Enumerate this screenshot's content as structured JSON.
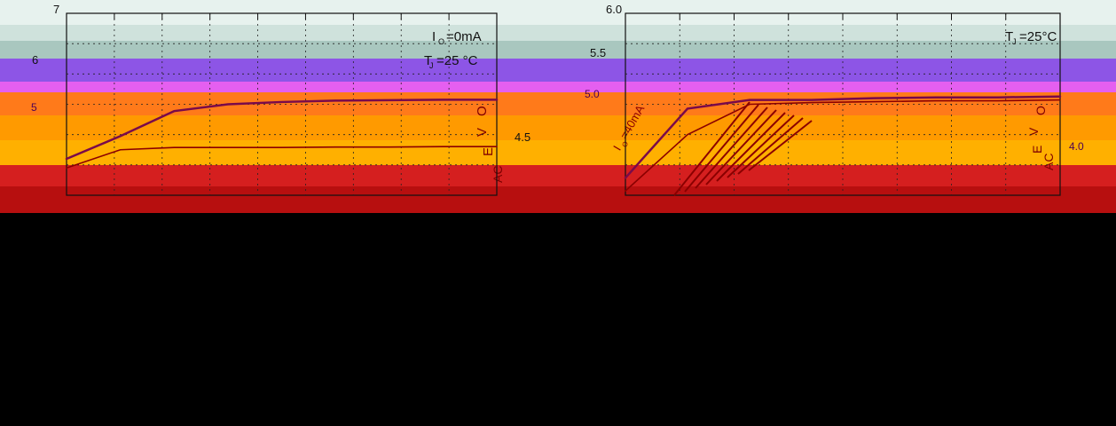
{
  "page": {
    "colors": {
      "background": "#ffffff",
      "overlay_mask": "#000000",
      "band_colors": [
        "#e7f2ee",
        "#cfe2dc",
        "#a9c7bf",
        "#8d55e6",
        "#e55ff0",
        "#ff7a1a",
        "#ff9a00",
        "#ffb000",
        "#d51f1f",
        "#b70f0f"
      ]
    }
  },
  "chart_data": [
    {
      "type": "line",
      "title": "",
      "y_ticks": [
        "7",
        "6",
        "5"
      ],
      "legend_labels": [
        {
          "id": "current",
          "prefix": "I",
          "sub": "O",
          "suffix": "=0mA"
        },
        {
          "id": "temp",
          "prefix": "T",
          "sub": "J",
          "suffix": "=25 °C"
        }
      ],
      "x_ticks_count": 9,
      "ylim": [
        3,
        7
      ],
      "series": [
        {
          "values": [
            3.8,
            4.3,
            4.85,
            5.0,
            5.05,
            5.08,
            5.09,
            5.1,
            5.1
          ]
        },
        {
          "values": [
            3.6,
            4.0,
            4.05,
            4.05,
            4.05,
            4.06,
            4.06,
            4.07,
            4.07
          ]
        }
      ],
      "axis_fragments": [
        "V",
        "O",
        "E",
        "AC"
      ]
    },
    {
      "type": "line",
      "title": "",
      "y_ticks": [
        "6.0",
        "5.5",
        "5.0",
        "4.5",
        "4.0"
      ],
      "legend_labels": [
        {
          "id": "temp",
          "prefix": "T",
          "sub": "J",
          "suffix": "=25°C"
        },
        {
          "id": "current",
          "prefix": "I",
          "sub": "O",
          "suffix": "=40mA"
        }
      ],
      "x_ticks_count": 8,
      "ylim": [
        3.9,
        6.0
      ],
      "series": [
        {
          "values": [
            4.1,
            4.9,
            5.0,
            5.0,
            5.02,
            5.03,
            5.03,
            5.04
          ]
        },
        {
          "values": [
            3.95,
            4.6,
            4.95,
            4.97,
            4.98,
            4.99,
            4.99,
            5.0
          ]
        }
      ],
      "axis_fragments": [
        "V",
        "O",
        "E",
        "AC"
      ]
    }
  ]
}
